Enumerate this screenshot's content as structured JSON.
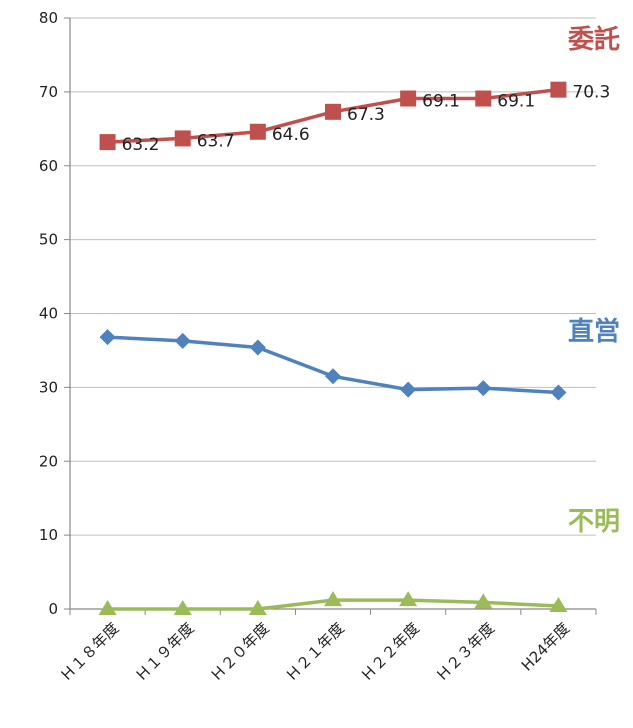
{
  "chart_data": {
    "type": "line",
    "categories": [
      "Ｈ１８年度",
      "Ｈ１９年度",
      "Ｈ２０年度",
      "Ｈ２１年度",
      "Ｈ２２年度",
      "Ｈ２３年度",
      "H24年度"
    ],
    "ylim": [
      0,
      80
    ],
    "yticks": [
      "0",
      "10",
      "20",
      "30",
      "40",
      "50",
      "60",
      "70",
      "80"
    ],
    "grid": true,
    "series": [
      {
        "name": "委託",
        "color": "#c0504d",
        "marker": "square",
        "values": [
          63.2,
          63.7,
          64.6,
          67.3,
          69.1,
          69.1,
          70.3
        ],
        "data_labels": [
          "63.2",
          "63.7",
          "64.6",
          "67.3",
          "69.1",
          "69.1",
          "70.3"
        ]
      },
      {
        "name": "直営",
        "color": "#4f81bd",
        "marker": "diamond",
        "values": [
          36.8,
          36.3,
          35.4,
          31.5,
          29.7,
          29.9,
          29.3
        ]
      },
      {
        "name": "不明",
        "color": "#9bbb59",
        "marker": "triangle",
        "values": [
          0.0,
          0.0,
          0.0,
          1.2,
          1.2,
          0.9,
          0.4
        ]
      }
    ]
  }
}
